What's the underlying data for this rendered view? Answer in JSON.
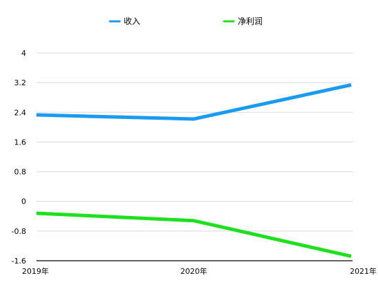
{
  "chart_data": {
    "type": "line",
    "categories": [
      "2019年",
      "2020年",
      "2021年"
    ],
    "y_ticks": [
      "4",
      "3.2",
      "2.4",
      "1.6",
      "0.8",
      "0",
      "-0.8",
      "-1.6"
    ],
    "ylim": [
      -1.6,
      4
    ],
    "series": [
      {
        "name": "收入",
        "color": "#1a9bf0",
        "values": [
          2.33,
          2.22,
          3.14
        ]
      },
      {
        "name": "净利润",
        "color": "#1fe01f",
        "values": [
          -0.32,
          -0.52,
          -1.48
        ]
      }
    ],
    "grid": true,
    "legend_position": "top-center"
  }
}
